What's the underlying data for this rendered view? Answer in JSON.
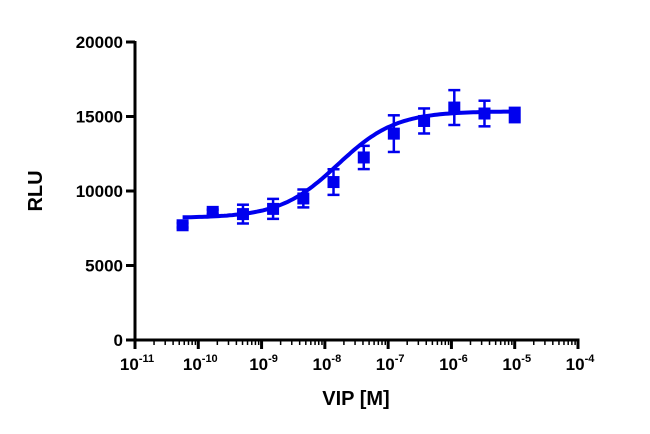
{
  "chart_data": {
    "type": "scatter",
    "title": "",
    "xlabel": "VIP [M]",
    "ylabel": "RLU",
    "xscale": "log",
    "xlim": [
      1e-11,
      0.0001
    ],
    "ylim": [
      0,
      20000
    ],
    "grid": false,
    "color": "#0000ee",
    "x_ticks": [
      {
        "base": "10",
        "exp": "-11"
      },
      {
        "base": "10",
        "exp": "-10"
      },
      {
        "base": "10",
        "exp": "-9"
      },
      {
        "base": "10",
        "exp": "-8"
      },
      {
        "base": "10",
        "exp": "-7"
      },
      {
        "base": "10",
        "exp": "-6"
      },
      {
        "base": "10",
        "exp": "-5"
      },
      {
        "base": "10",
        "exp": "-4"
      }
    ],
    "y_ticks": [
      "0",
      "5000",
      "10000",
      "15000",
      "20000"
    ],
    "series": [
      {
        "name": "VIP",
        "marker": "square",
        "x": [
          5.65e-11,
          1.69e-10,
          5.08e-10,
          1.52e-09,
          4.57e-09,
          1.37e-08,
          4.12e-08,
          1.23e-07,
          3.7e-07,
          1.11e-06,
          3.33e-06,
          1e-05
        ],
        "y": [
          7700,
          8600,
          8450,
          8800,
          9500,
          10600,
          12250,
          13850,
          14700,
          15600,
          15200,
          15100
        ],
        "err": [
          150,
          150,
          630,
          670,
          600,
          860,
          780,
          1230,
          840,
          1170,
          860,
          480
        ]
      }
    ],
    "fit": {
      "model": "4PL",
      "bottom": 8200,
      "top": 15350,
      "ec50": 1.6e-08,
      "hill": 0.95
    }
  }
}
